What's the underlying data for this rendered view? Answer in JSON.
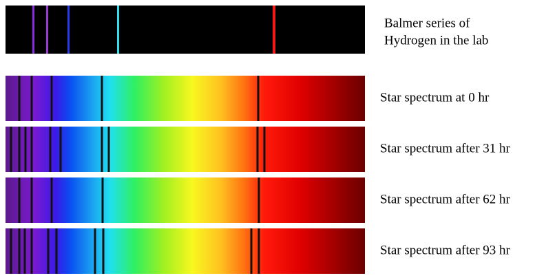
{
  "lab": {
    "label_lines": [
      "Balmer series of",
      "Hydrogen in the lab"
    ]
  },
  "spectra": [
    {
      "label": "Star spectrum at 0 hr"
    },
    {
      "label": "Star spectrum after 31 hr"
    },
    {
      "label": "Star spectrum after 62 hr"
    },
    {
      "label": "Star spectrum after 93 hr"
    }
  ]
}
